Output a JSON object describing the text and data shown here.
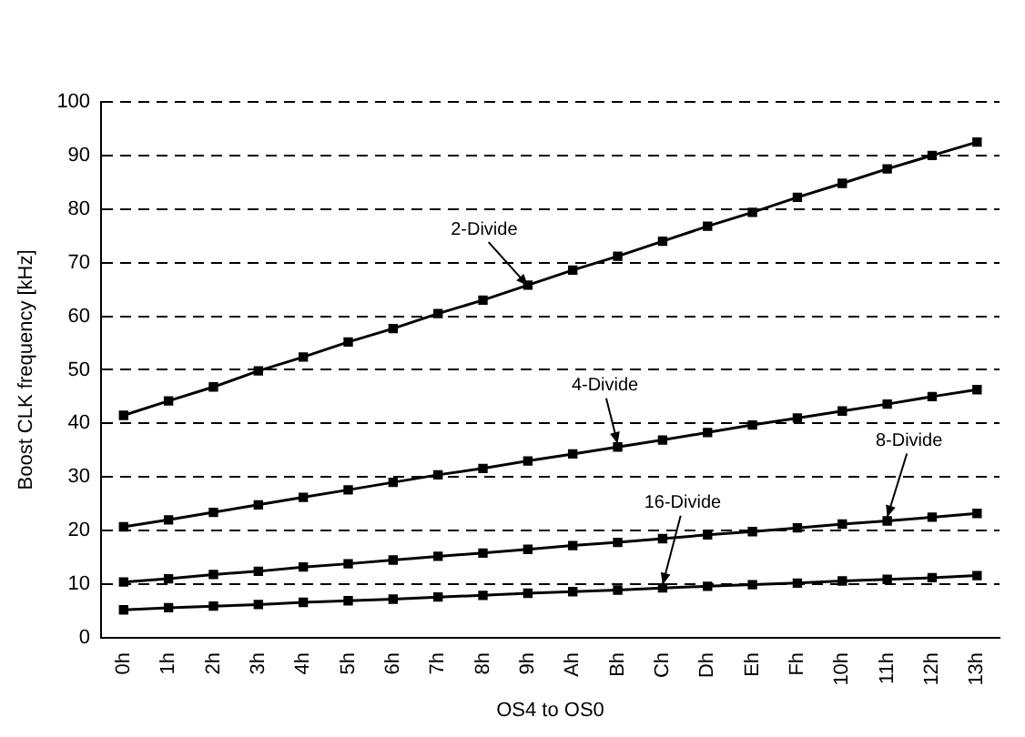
{
  "chart_data": {
    "type": "line",
    "xlabel": "OS4 to OS0",
    "ylabel": "Boost CLK frequency [kHz]",
    "categories": [
      "0h",
      "1h",
      "2h",
      "3h",
      "4h",
      "5h",
      "6h",
      "7h",
      "8h",
      "9h",
      "Ah",
      "Bh",
      "Ch",
      "Dh",
      "Eh",
      "Fh",
      "10h",
      "11h",
      "12h",
      "13h"
    ],
    "series": [
      {
        "color": "#000000",
        "values": [
          41.5,
          44.2,
          46.8,
          49.8,
          52.4,
          55.2,
          57.7,
          60.5,
          63.0,
          65.8,
          68.6,
          71.2,
          74.0,
          76.8,
          79.4,
          82.2,
          84.8,
          87.5,
          90.0,
          92.5
        ]
      },
      {
        "color": "#000000",
        "values": [
          20.7,
          22.0,
          23.4,
          24.8,
          26.2,
          27.6,
          29.0,
          30.4,
          31.6,
          33.0,
          34.3,
          35.6,
          36.9,
          38.3,
          39.7,
          41.0,
          42.3,
          43.6,
          45.0,
          46.3
        ]
      },
      {
        "color": "#000000",
        "values": [
          10.4,
          11.0,
          11.8,
          12.4,
          13.2,
          13.8,
          14.5,
          15.2,
          15.8,
          16.5,
          17.2,
          17.8,
          18.5,
          19.2,
          19.8,
          20.5,
          21.2,
          21.8,
          22.5,
          23.2
        ]
      },
      {
        "color": "#000000",
        "values": [
          5.2,
          5.6,
          5.9,
          6.2,
          6.6,
          6.9,
          7.2,
          7.6,
          7.9,
          8.3,
          8.6,
          8.9,
          9.3,
          9.6,
          9.9,
          10.2,
          10.6,
          10.9,
          11.2,
          11.6
        ]
      }
    ],
    "annotations": [
      {
        "text": "2-Divide",
        "x": "9h",
        "y": 65
      },
      {
        "text": "4-Divide",
        "x": "Bh",
        "y": 35.5
      },
      {
        "text": "8-Divide",
        "x": "11h",
        "y": 21.8
      },
      {
        "text": "16-Divide",
        "x": "Ch",
        "y": 9.2
      }
    ],
    "ylim": [
      0,
      100
    ],
    "yticks": [
      0,
      10,
      20,
      30,
      40,
      50,
      60,
      70,
      80,
      90,
      100
    ],
    "grid": "y",
    "marker": "square",
    "line_style": "solid",
    "legend": false
  }
}
